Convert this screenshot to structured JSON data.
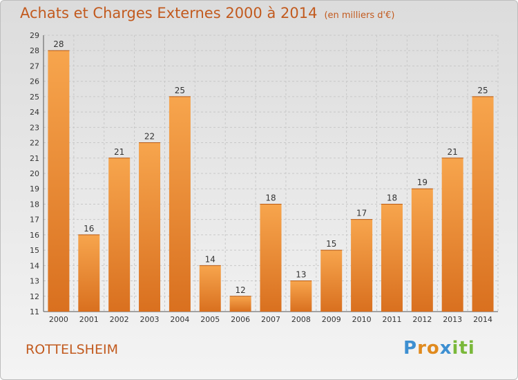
{
  "title": "Achats et Charges Externes 2000 à 2014",
  "subtitle": "(en milliers d'€)",
  "place": "ROTTELSHEIM",
  "logo": {
    "letters": [
      "P",
      "r",
      "o",
      "x",
      "i",
      "t",
      "i"
    ],
    "colors": [
      "#3d8fd1",
      "#e08a1e",
      "#e08a1e",
      "#3d8fd1",
      "#7ab83a",
      "#7ab83a",
      "#7ab83a"
    ]
  },
  "colors": {
    "bar_light": "#f7a54d",
    "bar_dark": "#d9701f",
    "text_accent": "#c25a1e"
  },
  "chart_data": {
    "type": "bar",
    "categories": [
      "2000",
      "2001",
      "2002",
      "2003",
      "2004",
      "2005",
      "2006",
      "2007",
      "2008",
      "2009",
      "2010",
      "2011",
      "2012",
      "2013",
      "2014"
    ],
    "values": [
      28,
      16,
      21,
      22,
      25,
      14,
      12,
      18,
      13,
      15,
      17,
      18,
      19,
      21,
      25
    ],
    "ylim": [
      11,
      29
    ],
    "yticks": [
      11,
      12,
      13,
      14,
      15,
      16,
      17,
      18,
      19,
      20,
      21,
      22,
      23,
      24,
      25,
      26,
      27,
      28,
      29
    ],
    "grid": true,
    "data_labels": true
  }
}
